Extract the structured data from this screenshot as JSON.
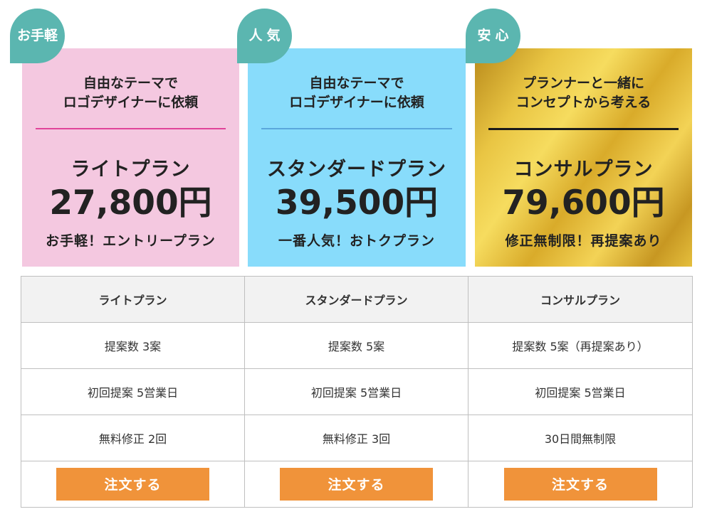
{
  "plans": [
    {
      "badge": "お手軽",
      "subtitle": "自由なテーマで\nロゴデザイナーに依頼",
      "name": "ライトプラン",
      "price": "27,800円",
      "tagline": "お手軽！エントリープラン"
    },
    {
      "badge": "人気",
      "subtitle": "自由なテーマで\nロゴデザイナーに依頼",
      "name": "スタンダードプラン",
      "price": "39,500円",
      "tagline": "一番人気！おトクプラン"
    },
    {
      "badge": "安心",
      "subtitle": "プランナーと一緒に\nコンセプトから考える",
      "name": "コンサルプラン",
      "price": "79,600円",
      "tagline": "修正無制限！再提案あり"
    }
  ],
  "table": {
    "headers": [
      "ライトプラン",
      "スタンダードプラン",
      "コンサルプラン"
    ],
    "rows": [
      [
        "提案数 3案",
        "提案数 5案",
        "提案数 5案（再提案あり）"
      ],
      [
        "初回提案 5営業日",
        "初回提案 5営業日",
        "初回提案 5営業日"
      ],
      [
        "無料修正 2回",
        "無料修正 3回",
        "30日間無制限"
      ]
    ],
    "order_label": "注文する"
  },
  "colors": {
    "light_card": "#f4c8e0",
    "standard_card": "#88dcfb",
    "consult_card": "#e9c543",
    "badge": "#5bb6b0",
    "order_button": "#f0933a"
  }
}
